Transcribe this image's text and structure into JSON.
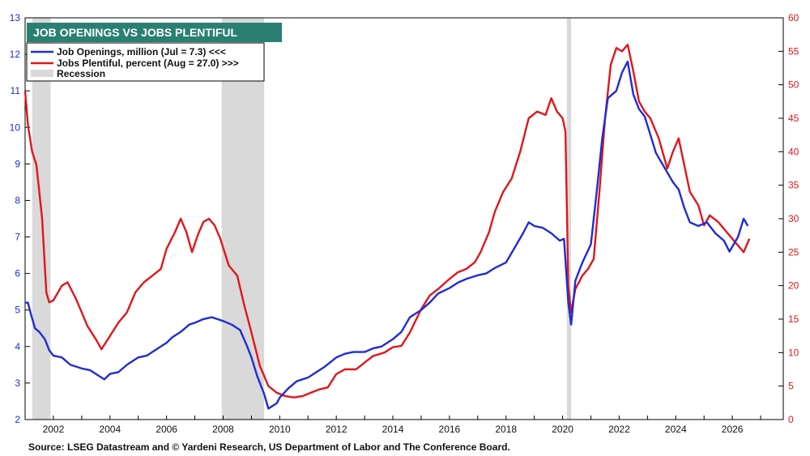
{
  "chart_data": {
    "type": "line",
    "title": "JOB OPENINGS VS JOBS PLENTIFUL",
    "source": "Source: LSEG Datastream and © Yardeni Research,  US Department of Labor and The Conference Board.",
    "legend": {
      "placement": "top-left",
      "entries": [
        "Job Openings, million (Jul = 7.3) <<<",
        "Jobs Plentiful, percent (Aug = 27.0) >>>",
        "Recession"
      ]
    },
    "colors": {
      "title_bg": "#2a7f73",
      "job_openings": "#1f2bd6",
      "jobs_plentiful": "#e0161b",
      "recession": "#d9d9d9",
      "left_axis": "#1f2bd6",
      "right_axis": "#e0161b"
    },
    "x_axis": {
      "min": 2001.0,
      "max": 2027.8,
      "tick_labels": [
        "2002",
        "2004",
        "2006",
        "2008",
        "2010",
        "2012",
        "2014",
        "2016",
        "2018",
        "2020",
        "2022",
        "2024",
        "2026"
      ]
    },
    "y_left": {
      "min": 2,
      "max": 13,
      "tick_labels": [
        "2",
        "3",
        "4",
        "5",
        "6",
        "7",
        "8",
        "9",
        "10",
        "11",
        "12",
        "13"
      ]
    },
    "y_right": {
      "min": 0,
      "max": 60,
      "tick_labels": [
        "0",
        "5",
        "10",
        "15",
        "20",
        "25",
        "30",
        "35",
        "40",
        "45",
        "50",
        "55",
        "60"
      ]
    },
    "grid": false,
    "recessions": [
      [
        2001.25,
        2001.9
      ],
      [
        2007.95,
        2009.45
      ],
      [
        2020.15,
        2020.3
      ]
    ],
    "series": [
      {
        "name": "Job Openings, million (Jul = 7.3) <<<",
        "axis": "left",
        "points": [
          [
            2001.0,
            5.2
          ],
          [
            2001.1,
            5.2
          ],
          [
            2001.2,
            4.9
          ],
          [
            2001.35,
            4.5
          ],
          [
            2001.5,
            4.4
          ],
          [
            2001.7,
            4.2
          ],
          [
            2001.85,
            3.9
          ],
          [
            2002.0,
            3.75
          ],
          [
            2002.3,
            3.7
          ],
          [
            2002.6,
            3.5
          ],
          [
            2003.0,
            3.4
          ],
          [
            2003.3,
            3.35
          ],
          [
            2003.6,
            3.2
          ],
          [
            2003.8,
            3.1
          ],
          [
            2004.0,
            3.25
          ],
          [
            2004.3,
            3.3
          ],
          [
            2004.6,
            3.5
          ],
          [
            2005.0,
            3.7
          ],
          [
            2005.3,
            3.75
          ],
          [
            2005.6,
            3.9
          ],
          [
            2006.0,
            4.1
          ],
          [
            2006.2,
            4.25
          ],
          [
            2006.5,
            4.4
          ],
          [
            2006.8,
            4.6
          ],
          [
            2007.0,
            4.65
          ],
          [
            2007.3,
            4.75
          ],
          [
            2007.6,
            4.8
          ],
          [
            2007.8,
            4.75
          ],
          [
            2008.0,
            4.7
          ],
          [
            2008.3,
            4.6
          ],
          [
            2008.6,
            4.45
          ],
          [
            2008.85,
            4.0
          ],
          [
            2009.0,
            3.7
          ],
          [
            2009.2,
            3.2
          ],
          [
            2009.45,
            2.7
          ],
          [
            2009.6,
            2.3
          ],
          [
            2009.9,
            2.45
          ],
          [
            2010.0,
            2.6
          ],
          [
            2010.3,
            2.85
          ],
          [
            2010.6,
            3.05
          ],
          [
            2011.0,
            3.15
          ],
          [
            2011.3,
            3.3
          ],
          [
            2011.6,
            3.45
          ],
          [
            2012.0,
            3.7
          ],
          [
            2012.3,
            3.8
          ],
          [
            2012.6,
            3.85
          ],
          [
            2013.0,
            3.85
          ],
          [
            2013.3,
            3.95
          ],
          [
            2013.6,
            4.0
          ],
          [
            2014.0,
            4.2
          ],
          [
            2014.3,
            4.4
          ],
          [
            2014.6,
            4.8
          ],
          [
            2015.0,
            5.0
          ],
          [
            2015.3,
            5.2
          ],
          [
            2015.6,
            5.45
          ],
          [
            2016.0,
            5.6
          ],
          [
            2016.3,
            5.75
          ],
          [
            2016.6,
            5.85
          ],
          [
            2017.0,
            5.95
          ],
          [
            2017.3,
            6.0
          ],
          [
            2017.6,
            6.15
          ],
          [
            2018.0,
            6.3
          ],
          [
            2018.3,
            6.7
          ],
          [
            2018.6,
            7.1
          ],
          [
            2018.8,
            7.4
          ],
          [
            2019.0,
            7.3
          ],
          [
            2019.3,
            7.25
          ],
          [
            2019.6,
            7.1
          ],
          [
            2019.9,
            6.9
          ],
          [
            2020.05,
            6.95
          ],
          [
            2020.2,
            5.2
          ],
          [
            2020.3,
            4.6
          ],
          [
            2020.45,
            5.8
          ],
          [
            2020.7,
            6.3
          ],
          [
            2021.0,
            6.8
          ],
          [
            2021.2,
            8.2
          ],
          [
            2021.4,
            9.7
          ],
          [
            2021.6,
            10.8
          ],
          [
            2021.9,
            11.0
          ],
          [
            2022.1,
            11.5
          ],
          [
            2022.3,
            11.8
          ],
          [
            2022.5,
            10.9
          ],
          [
            2022.7,
            10.5
          ],
          [
            2022.9,
            10.3
          ],
          [
            2023.1,
            9.8
          ],
          [
            2023.3,
            9.3
          ],
          [
            2023.6,
            8.9
          ],
          [
            2023.9,
            8.5
          ],
          [
            2024.1,
            8.3
          ],
          [
            2024.3,
            7.8
          ],
          [
            2024.5,
            7.4
          ],
          [
            2024.8,
            7.3
          ],
          [
            2025.1,
            7.4
          ],
          [
            2025.4,
            7.1
          ],
          [
            2025.7,
            6.9
          ],
          [
            2025.9,
            6.6
          ],
          [
            2026.2,
            7.0
          ],
          [
            2026.4,
            7.5
          ],
          [
            2026.55,
            7.3
          ]
        ]
      },
      {
        "name": "Jobs Plentiful, percent (Aug = 27.0) >>>",
        "axis": "right",
        "points": [
          [
            2001.0,
            49.0
          ],
          [
            2001.1,
            44.0
          ],
          [
            2001.25,
            40.0
          ],
          [
            2001.4,
            38.0
          ],
          [
            2001.5,
            34.0
          ],
          [
            2001.6,
            30.0
          ],
          [
            2001.75,
            19.0
          ],
          [
            2001.85,
            17.5
          ],
          [
            2002.0,
            17.8
          ],
          [
            2002.3,
            20.0
          ],
          [
            2002.5,
            20.5
          ],
          [
            2002.8,
            18.0
          ],
          [
            2003.0,
            16.0
          ],
          [
            2003.2,
            14.0
          ],
          [
            2003.5,
            12.0
          ],
          [
            2003.7,
            10.5
          ],
          [
            2004.0,
            12.5
          ],
          [
            2004.3,
            14.5
          ],
          [
            2004.6,
            16.0
          ],
          [
            2004.9,
            19.0
          ],
          [
            2005.2,
            20.5
          ],
          [
            2005.5,
            21.5
          ],
          [
            2005.8,
            22.5
          ],
          [
            2006.0,
            25.5
          ],
          [
            2006.3,
            28.0
          ],
          [
            2006.5,
            30.0
          ],
          [
            2006.7,
            28.0
          ],
          [
            2006.9,
            25.0
          ],
          [
            2007.1,
            27.5
          ],
          [
            2007.3,
            29.5
          ],
          [
            2007.5,
            30.0
          ],
          [
            2007.7,
            29.0
          ],
          [
            2007.9,
            27.0
          ],
          [
            2008.2,
            23.0
          ],
          [
            2008.5,
            21.5
          ],
          [
            2008.75,
            17.0
          ],
          [
            2009.0,
            13.0
          ],
          [
            2009.3,
            8.0
          ],
          [
            2009.6,
            5.0
          ],
          [
            2009.9,
            4.0
          ],
          [
            2010.2,
            3.5
          ],
          [
            2010.5,
            3.3
          ],
          [
            2010.8,
            3.5
          ],
          [
            2011.1,
            4.0
          ],
          [
            2011.4,
            4.5
          ],
          [
            2011.7,
            4.8
          ],
          [
            2012.0,
            6.8
          ],
          [
            2012.3,
            7.5
          ],
          [
            2012.7,
            7.5
          ],
          [
            2013.0,
            8.5
          ],
          [
            2013.3,
            9.5
          ],
          [
            2013.7,
            10.0
          ],
          [
            2014.0,
            10.8
          ],
          [
            2014.3,
            11.0
          ],
          [
            2014.6,
            13.0
          ],
          [
            2015.0,
            16.5
          ],
          [
            2015.3,
            18.5
          ],
          [
            2015.6,
            19.5
          ],
          [
            2016.0,
            21.0
          ],
          [
            2016.3,
            22.0
          ],
          [
            2016.6,
            22.5
          ],
          [
            2016.9,
            23.5
          ],
          [
            2017.1,
            25.0
          ],
          [
            2017.4,
            28.0
          ],
          [
            2017.6,
            31.0
          ],
          [
            2017.9,
            34.0
          ],
          [
            2018.2,
            36.0
          ],
          [
            2018.5,
            40.0
          ],
          [
            2018.8,
            45.0
          ],
          [
            2019.1,
            46.0
          ],
          [
            2019.4,
            45.5
          ],
          [
            2019.6,
            48.0
          ],
          [
            2019.8,
            46.0
          ],
          [
            2020.0,
            45.0
          ],
          [
            2020.1,
            43.0
          ],
          [
            2020.2,
            20.0
          ],
          [
            2020.3,
            16.0
          ],
          [
            2020.45,
            19.5
          ],
          [
            2020.7,
            21.5
          ],
          [
            2020.9,
            22.5
          ],
          [
            2021.1,
            24.0
          ],
          [
            2021.3,
            34.0
          ],
          [
            2021.5,
            45.0
          ],
          [
            2021.7,
            53.0
          ],
          [
            2021.9,
            55.5
          ],
          [
            2022.1,
            55.0
          ],
          [
            2022.3,
            56.0
          ],
          [
            2022.5,
            52.0
          ],
          [
            2022.7,
            47.5
          ],
          [
            2022.9,
            46.0
          ],
          [
            2023.1,
            45.0
          ],
          [
            2023.4,
            42.0
          ],
          [
            2023.7,
            37.5
          ],
          [
            2023.9,
            40.0
          ],
          [
            2024.1,
            42.0
          ],
          [
            2024.3,
            38.0
          ],
          [
            2024.5,
            34.0
          ],
          [
            2024.8,
            32.0
          ],
          [
            2025.0,
            29.0
          ],
          [
            2025.2,
            30.5
          ],
          [
            2025.5,
            29.5
          ],
          [
            2025.8,
            28.0
          ],
          [
            2026.0,
            27.0
          ],
          [
            2026.2,
            26.0
          ],
          [
            2026.4,
            25.0
          ],
          [
            2026.6,
            27.0
          ]
        ]
      }
    ]
  }
}
